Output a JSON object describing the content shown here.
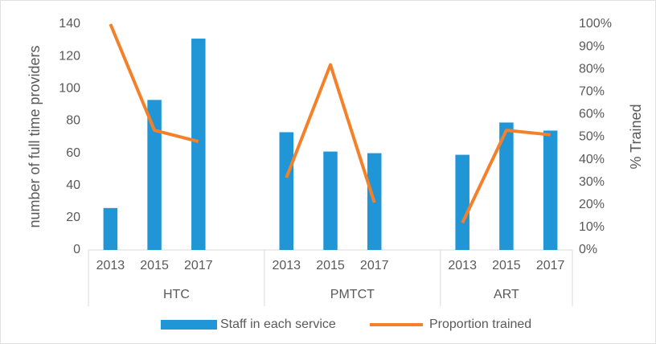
{
  "chart_data": {
    "type": "bar-line",
    "categories": [
      "2013",
      "2015",
      "2017",
      null,
      "2013",
      "2015",
      "2017",
      null,
      "2013",
      "2015",
      "2017"
    ],
    "groups": [
      {
        "label": "HTC",
        "count": 4
      },
      {
        "label": "PMTCT",
        "count": 4
      },
      {
        "label": "ART",
        "count": 3
      }
    ],
    "series": [
      {
        "name": "Staff in each service",
        "type": "bar",
        "color": "#2196d6",
        "values": [
          26,
          93,
          131,
          null,
          73,
          61,
          60,
          null,
          59,
          79,
          74
        ]
      },
      {
        "name": "Proportion trained",
        "type": "line",
        "axis": "y2",
        "color": "#f4812a",
        "values": [
          100,
          53,
          48,
          null,
          32,
          82,
          21,
          null,
          12,
          53,
          51
        ]
      }
    ],
    "ylabel": "number of full time providers",
    "y2label": "% Trained",
    "ylim": [
      0,
      140
    ],
    "yticks": [
      0,
      20,
      40,
      60,
      80,
      100,
      120,
      140
    ],
    "y2lim": [
      0,
      100
    ],
    "y2ticks": [
      {
        "value": 0,
        "label": "0%"
      },
      {
        "value": 10,
        "label": "10%"
      },
      {
        "value": 20,
        "label": "20%"
      },
      {
        "value": 30,
        "label": "30%"
      },
      {
        "value": 40,
        "label": "40%"
      },
      {
        "value": 50,
        "label": "50%"
      },
      {
        "value": 60,
        "label": "60%"
      },
      {
        "value": 70,
        "label": "70%"
      },
      {
        "value": 80,
        "label": "80%"
      },
      {
        "value": 90,
        "label": "90%"
      },
      {
        "value": 100,
        "label": "100%"
      }
    ],
    "grid": false,
    "legend": "bottom"
  }
}
